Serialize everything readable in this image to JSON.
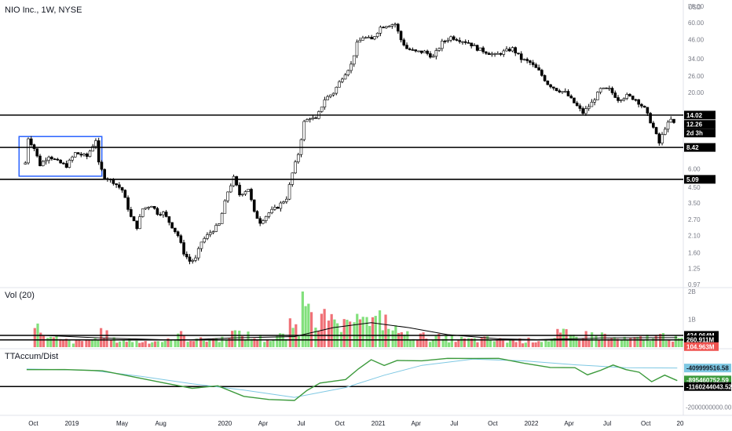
{
  "chart_data": [
    {
      "type": "candlestick",
      "title": "NIO Inc., 1W, NYSE",
      "y_unit": "USD",
      "y_scale": "log",
      "ylim": [
        0.97,
        78
      ],
      "y_ticks": [
        "78.00",
        "60.00",
        "46.00",
        "34.00",
        "26.00",
        "20.00",
        "14.02",
        "12.26",
        "8.42",
        "6.00",
        "5.09",
        "4.50",
        "3.50",
        "2.70",
        "2.10",
        "1.60",
        "1.25",
        "0.97"
      ],
      "x_ticks": [
        "Oct",
        "2019",
        "May",
        "Aug",
        "2020",
        "Apr",
        "Jul",
        "Oct",
        "2021",
        "Apr",
        "Jul",
        "Oct",
        "2022",
        "Apr",
        "Jul",
        "Oct",
        "20"
      ],
      "horizontal_levels": [
        14.02,
        8.42,
        5.09
      ],
      "last_price": "12.26",
      "countdown": "2d 3h",
      "range_box": {
        "from": "2018-09-12",
        "to": "2019-03-06",
        "low": 5.35,
        "high": 10.0
      },
      "price_points": [
        [
          "2018-09-12",
          6.6
        ],
        [
          "2018-09-19",
          9.8
        ],
        [
          "2018-10-03",
          8.3
        ],
        [
          "2018-10-17",
          6.4
        ],
        [
          "2018-11-07",
          7.4
        ],
        [
          "2018-11-28",
          6.7
        ],
        [
          "2018-12-19",
          6.3
        ],
        [
          "2019-01-09",
          7.7
        ],
        [
          "2019-02-06",
          7.3
        ],
        [
          "2019-02-27",
          9.5
        ],
        [
          "2019-03-06",
          6.5
        ],
        [
          "2019-03-20",
          5.3
        ],
        [
          "2019-04-10",
          4.9
        ],
        [
          "2019-05-01",
          4.3
        ],
        [
          "2019-05-22",
          2.8
        ],
        [
          "2019-06-05",
          2.4
        ],
        [
          "2019-06-19",
          3.2
        ],
        [
          "2019-07-10",
          3.4
        ],
        [
          "2019-07-24",
          3.0
        ],
        [
          "2019-08-07",
          3.0
        ],
        [
          "2019-08-21",
          2.6
        ],
        [
          "2019-09-11",
          2.1
        ],
        [
          "2019-09-25",
          1.6
        ],
        [
          "2019-10-09",
          1.4
        ],
        [
          "2019-10-23",
          1.45
        ],
        [
          "2019-11-06",
          1.9
        ],
        [
          "2019-11-27",
          2.2
        ],
        [
          "2019-12-18",
          2.5
        ],
        [
          "2020-01-08",
          4.2
        ],
        [
          "2020-01-22",
          5.2
        ],
        [
          "2020-02-05",
          4.0
        ],
        [
          "2020-02-26",
          4.4
        ],
        [
          "2020-03-11",
          3.0
        ],
        [
          "2020-03-25",
          2.6
        ],
        [
          "2020-04-15",
          3.0
        ],
        [
          "2020-05-06",
          3.3
        ],
        [
          "2020-05-27",
          3.8
        ],
        [
          "2020-06-10",
          5.6
        ],
        [
          "2020-06-24",
          7.6
        ],
        [
          "2020-07-08",
          12.5
        ],
        [
          "2020-07-22",
          13.5
        ],
        [
          "2020-08-05",
          13.0
        ],
        [
          "2020-08-26",
          18.0
        ],
        [
          "2020-09-16",
          20.0
        ],
        [
          "2020-10-07",
          25.5
        ],
        [
          "2020-10-28",
          31.0
        ],
        [
          "2020-11-11",
          43.0
        ],
        [
          "2020-11-25",
          48.0
        ],
        [
          "2020-12-16",
          46.0
        ],
        [
          "2021-01-06",
          56.0
        ],
        [
          "2021-01-20",
          58.0
        ],
        [
          "2021-02-10",
          59.0
        ],
        [
          "2021-02-24",
          46.0
        ],
        [
          "2021-03-10",
          40.0
        ],
        [
          "2021-03-31",
          38.0
        ],
        [
          "2021-04-21",
          38.0
        ],
        [
          "2021-05-12",
          35.0
        ],
        [
          "2021-06-02",
          44.0
        ],
        [
          "2021-06-23",
          48.0
        ],
        [
          "2021-07-14",
          46.0
        ],
        [
          "2021-08-04",
          44.0
        ],
        [
          "2021-08-25",
          40.0
        ],
        [
          "2021-09-15",
          38.0
        ],
        [
          "2021-10-06",
          36.0
        ],
        [
          "2021-10-27",
          38.0
        ],
        [
          "2021-11-17",
          40.0
        ],
        [
          "2021-12-08",
          34.0
        ],
        [
          "2021-12-29",
          32.0
        ],
        [
          "2022-01-19",
          28.0
        ],
        [
          "2022-02-09",
          23.0
        ],
        [
          "2022-03-02",
          21.0
        ],
        [
          "2022-03-23",
          20.0
        ],
        [
          "2022-04-13",
          17.0
        ],
        [
          "2022-05-04",
          14.5
        ],
        [
          "2022-05-25",
          17.0
        ],
        [
          "2022-06-15",
          21.0
        ],
        [
          "2022-07-06",
          21.0
        ],
        [
          "2022-07-27",
          18.0
        ],
        [
          "2022-08-17",
          19.0
        ],
        [
          "2022-09-07",
          18.0
        ],
        [
          "2022-09-28",
          15.5
        ],
        [
          "2022-10-19",
          11.5
        ],
        [
          "2022-11-02",
          9.0
        ],
        [
          "2022-11-16",
          11.5
        ],
        [
          "2022-11-30",
          13.0
        ],
        [
          "2022-12-07",
          12.26
        ]
      ]
    },
    {
      "type": "bar",
      "title": "Vol (20)",
      "y_ticks": [
        "2B",
        "1B"
      ],
      "labels": [
        "424.064M",
        "260.911M",
        "104.963M"
      ],
      "horizontal_levels": [
        424064000,
        260911000
      ],
      "values_in_millions": [
        [
          "2018-10",
          640
        ],
        [
          "2018-11",
          300
        ],
        [
          "2018-12",
          230
        ],
        [
          "2019-01",
          200
        ],
        [
          "2019-02",
          260
        ],
        [
          "2019-03",
          480
        ],
        [
          "2019-04",
          250
        ],
        [
          "2019-05",
          240
        ],
        [
          "2019-06",
          200
        ],
        [
          "2019-07",
          220
        ],
        [
          "2019-08",
          230
        ],
        [
          "2019-09",
          420
        ],
        [
          "2019-10",
          300
        ],
        [
          "2019-11",
          250
        ],
        [
          "2019-12",
          290
        ],
        [
          "2020-01",
          500
        ],
        [
          "2020-02",
          420
        ],
        [
          "2020-03",
          330
        ],
        [
          "2020-04",
          280
        ],
        [
          "2020-05",
          380
        ],
        [
          "2020-06",
          720
        ],
        [
          "2020-07",
          2050
        ],
        [
          "2020-08",
          1020
        ],
        [
          "2020-09",
          830
        ],
        [
          "2020-10",
          700
        ],
        [
          "2020-11",
          1550
        ],
        [
          "2020-12",
          880
        ],
        [
          "2021-01",
          960
        ],
        [
          "2021-02",
          580
        ],
        [
          "2021-03",
          420
        ],
        [
          "2021-04",
          380
        ],
        [
          "2021-05",
          340
        ],
        [
          "2021-06",
          300
        ],
        [
          "2021-07",
          280
        ],
        [
          "2021-08",
          260
        ],
        [
          "2021-09",
          280
        ],
        [
          "2021-10",
          240
        ],
        [
          "2021-11",
          230
        ],
        [
          "2021-12",
          240
        ],
        [
          "2022-01",
          260
        ],
        [
          "2022-02",
          280
        ],
        [
          "2022-03",
          460
        ],
        [
          "2022-04",
          380
        ],
        [
          "2022-05",
          430
        ],
        [
          "2022-06",
          420
        ],
        [
          "2022-07",
          300
        ],
        [
          "2022-08",
          260
        ],
        [
          "2022-09",
          290
        ],
        [
          "2022-10",
          360
        ],
        [
          "2022-11",
          400
        ],
        [
          "2022-12",
          300
        ]
      ],
      "average_points": [
        [
          "2018-10",
          430
        ],
        [
          "2019-03",
          330
        ],
        [
          "2019-09",
          250
        ],
        [
          "2020-01",
          330
        ],
        [
          "2020-06",
          380
        ],
        [
          "2020-09",
          700
        ],
        [
          "2020-12",
          880
        ],
        [
          "2021-03",
          700
        ],
        [
          "2021-06",
          450
        ],
        [
          "2021-10",
          300
        ],
        [
          "2022-01",
          270
        ],
        [
          "2022-06",
          330
        ],
        [
          "2022-12",
          340
        ]
      ]
    },
    {
      "type": "line",
      "title": "TTAccum/Dist",
      "y_ticks": [
        "-2000000000.00"
      ],
      "labels": [
        "-409999516.58",
        "-895460752.59",
        "-1160244043.52"
      ],
      "horizontal_levels": [
        -1160244043.52
      ],
      "series": [
        {
          "points": [
            [
              "2018-09",
              -450000000
            ],
            [
              "2018-12",
              -470000000
            ],
            [
              "2019-03",
              -520000000
            ],
            [
              "2019-05",
              -700000000
            ],
            [
              "2019-08",
              -1020000000
            ],
            [
              "2019-10",
              -1200000000
            ],
            [
              "2019-12",
              -1150000000
            ],
            [
              "2020-02",
              -1550000000
            ],
            [
              "2020-04",
              -1700000000
            ],
            [
              "2020-06",
              -1750000000
            ],
            [
              "2020-07",
              -1300000000
            ],
            [
              "2020-08",
              -1000000000
            ],
            [
              "2020-10",
              -900000000
            ],
            [
              "2020-11",
              -450000000
            ],
            [
              "2020-12",
              -100000000
            ],
            [
              "2021-01",
              -300000000
            ],
            [
              "2021-02",
              -80000000
            ],
            [
              "2021-04",
              -120000000
            ],
            [
              "2021-06",
              -50000000
            ],
            [
              "2021-08",
              0
            ],
            [
              "2021-10",
              -30000000
            ],
            [
              "2021-12",
              -200000000
            ],
            [
              "2022-02",
              -380000000
            ],
            [
              "2022-04",
              -420000000
            ],
            [
              "2022-05",
              -700000000
            ],
            [
              "2022-06",
              -500000000
            ],
            [
              "2022-07",
              -300000000
            ],
            [
              "2022-08",
              -450000000
            ],
            [
              "2022-09",
              -600000000
            ],
            [
              "2022-10",
              -980000000
            ],
            [
              "2022-11",
              -720000000
            ],
            [
              "2022-12",
              -895460752
            ]
          ]
        },
        {
          "points": [
            [
              "2018-09",
              -450000000
            ],
            [
              "2019-02",
              -500000000
            ],
            [
              "2019-06",
              -750000000
            ],
            [
              "2019-10",
              -1050000000
            ],
            [
              "2020-02",
              -1300000000
            ],
            [
              "2020-06",
              -1600000000
            ],
            [
              "2020-10",
              -1200000000
            ],
            [
              "2021-01",
              -700000000
            ],
            [
              "2021-04",
              -300000000
            ],
            [
              "2021-08",
              -50000000
            ],
            [
              "2021-12",
              -120000000
            ],
            [
              "2022-04",
              -280000000
            ],
            [
              "2022-08",
              -400000000
            ],
            [
              "2022-12",
              -409999516
            ]
          ]
        }
      ]
    }
  ],
  "colors": {
    "up": "#26a69a",
    "down": "#ef5350",
    "vol_up": "#82e07c",
    "vol_down": "#f07177",
    "accum": "#3c9a3c",
    "signal": "#7ec8e3",
    "range_box": "#2962ff",
    "level": "#000000"
  }
}
